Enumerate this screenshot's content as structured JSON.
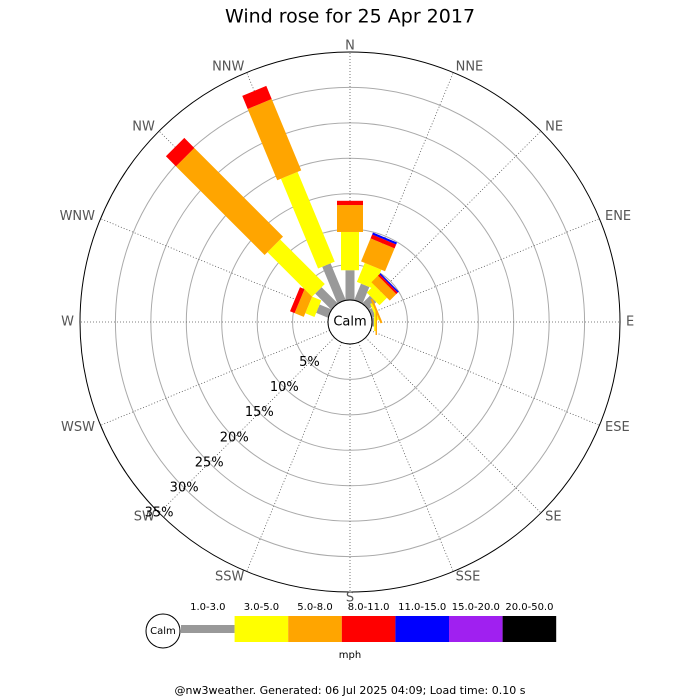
{
  "chart_data": {
    "type": "windrose",
    "title": "Wind rose for 25 Apr 2017",
    "calm_label": "Calm",
    "unit": "mph",
    "footer": "@nw3weather. Generated: 06 Jul 2025 04:09; Load time: 0.10 s",
    "directions": [
      "N",
      "NNE",
      "NE",
      "ENE",
      "E",
      "ESE",
      "SE",
      "SSE",
      "S",
      "SSW",
      "SW",
      "WSW",
      "W",
      "WNW",
      "NW",
      "NNW"
    ],
    "rlim": [
      0,
      35
    ],
    "rticks": [
      {
        "value": 5,
        "label": "5%"
      },
      {
        "value": 10,
        "label": "10%"
      },
      {
        "value": 15,
        "label": "15%"
      },
      {
        "value": 20,
        "label": "20%"
      },
      {
        "value": 25,
        "label": "25%"
      },
      {
        "value": 30,
        "label": "30%"
      },
      {
        "value": 35,
        "label": "35%"
      }
    ],
    "series": [
      {
        "name": "1.0-3.0",
        "color": "#999999",
        "values": [
          4.2,
          2.5,
          1.5,
          0.5,
          0.3,
          0,
          0,
          0,
          0,
          0,
          0,
          0,
          0,
          1.8,
          3.2,
          5.6
        ]
      },
      {
        "name": "3.0-5.0",
        "color": "#ffff00",
        "values": [
          5.4,
          2.9,
          1.5,
          0.3,
          0.2,
          0,
          0,
          0,
          0,
          0,
          0,
          0,
          0,
          1.4,
          8.9,
          13.7
        ]
      },
      {
        "name": "5.0-8.0",
        "color": "#ffa500",
        "values": [
          3.8,
          3.5,
          1.3,
          0.3,
          0.2,
          0,
          0,
          0,
          0,
          0,
          0,
          0,
          0,
          1.4,
          17.7,
          10.9
        ]
      },
      {
        "name": "8.0-11.0",
        "color": "#ff0000",
        "values": [
          0.6,
          0.6,
          0.3,
          0,
          0,
          0,
          0,
          0,
          0,
          0,
          0,
          0,
          0,
          0.7,
          2.0,
          2.0
        ]
      },
      {
        "name": "11.0-15.0",
        "color": "#0000ff",
        "values": [
          0,
          0.3,
          0.2,
          0,
          0,
          0,
          0,
          0,
          0,
          0,
          0,
          0,
          0,
          0,
          0,
          0
        ]
      },
      {
        "name": "15.0-20.0",
        "color": "#a020f0",
        "values": [
          0,
          0,
          0,
          0,
          0,
          0,
          0,
          0,
          0,
          0,
          0,
          0,
          0,
          0,
          0,
          0
        ]
      },
      {
        "name": "20.0-50.0",
        "color": "#000000",
        "values": [
          0,
          0,
          0,
          0,
          0,
          0,
          0,
          0,
          0,
          0,
          0,
          0,
          0,
          0,
          0,
          0
        ]
      }
    ]
  }
}
